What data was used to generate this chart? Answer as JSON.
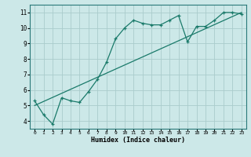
{
  "title": "",
  "xlabel": "Humidex (Indice chaleur)",
  "ylabel": "",
  "bg_color": "#cce8e8",
  "grid_color": "#aacccc",
  "line_color": "#1a7a6a",
  "xlim": [
    -0.5,
    23.5
  ],
  "ylim": [
    3.5,
    11.5
  ],
  "xticks": [
    0,
    1,
    2,
    3,
    4,
    5,
    6,
    7,
    8,
    9,
    10,
    11,
    12,
    13,
    14,
    15,
    16,
    17,
    18,
    19,
    20,
    21,
    22,
    23
  ],
  "yticks": [
    4,
    5,
    6,
    7,
    8,
    9,
    10,
    11
  ],
  "data_x": [
    0,
    1,
    2,
    3,
    4,
    5,
    6,
    7,
    8,
    9,
    10,
    11,
    12,
    13,
    14,
    15,
    16,
    17,
    18,
    19,
    20,
    21,
    22,
    23
  ],
  "data_y": [
    5.3,
    4.4,
    3.8,
    5.5,
    5.3,
    5.2,
    5.9,
    6.7,
    7.8,
    9.3,
    10.0,
    10.5,
    10.3,
    10.2,
    10.2,
    10.5,
    10.8,
    9.1,
    10.1,
    10.1,
    10.5,
    11.0,
    11.0,
    10.9
  ],
  "trend_x": [
    0,
    23
  ],
  "trend_y": [
    5.0,
    11.0
  ]
}
